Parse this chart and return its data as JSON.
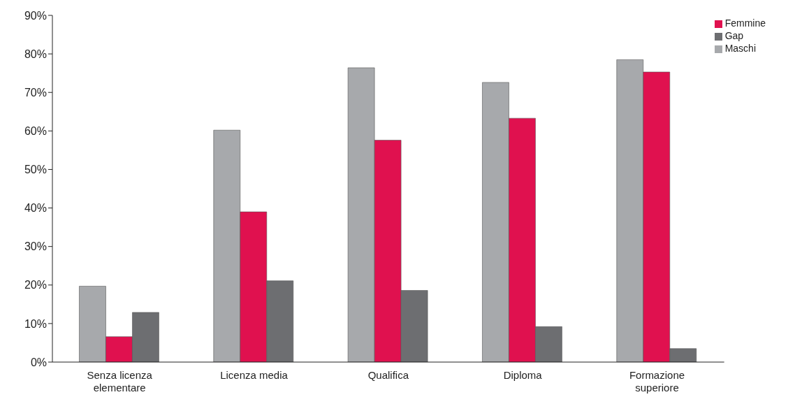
{
  "chart_data": {
    "type": "bar",
    "categories": [
      "Senza licenza elementare",
      "Licenza media",
      "Qualifica",
      "Diploma",
      "Formazione superiore"
    ],
    "series": [
      {
        "name": "Maschi",
        "color": "#a7a9ac",
        "values": [
          19.7,
          60.2,
          76.4,
          72.6,
          78.5
        ]
      },
      {
        "name": "Femmine",
        "color": "#e0114f",
        "values": [
          6.6,
          39.0,
          57.6,
          63.3,
          75.3
        ]
      },
      {
        "name": "Gap",
        "color": "#6d6e71",
        "values": [
          12.9,
          21.1,
          18.6,
          9.2,
          3.5
        ]
      }
    ],
    "ylim": [
      0,
      90
    ],
    "yticks": [
      {
        "value": 0,
        "label": "0%"
      },
      {
        "value": 10,
        "label": "10%"
      },
      {
        "value": 20,
        "label": "20%"
      },
      {
        "value": 30,
        "label": "30%"
      },
      {
        "value": 40,
        "label": "40%"
      },
      {
        "value": 50,
        "label": "50%"
      },
      {
        "value": 60,
        "label": "60%"
      },
      {
        "value": 70,
        "label": "70%"
      },
      {
        "value": 80,
        "label": "80%"
      },
      {
        "value": 90,
        "label": "90%"
      }
    ],
    "grid": false,
    "legend": "top right"
  }
}
